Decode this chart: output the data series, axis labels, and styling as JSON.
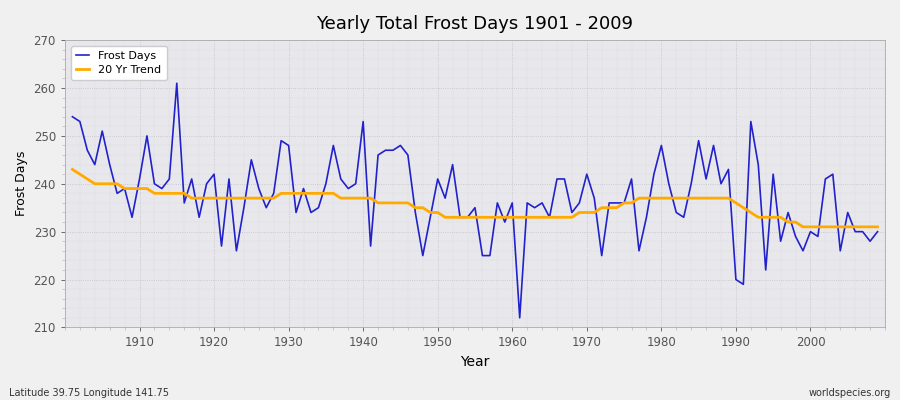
{
  "title": "Yearly Total Frost Days 1901 - 2009",
  "xlabel": "Year",
  "ylabel": "Frost Days",
  "footnote_left": "Latitude 39.75 Longitude 141.75",
  "footnote_right": "worldspecies.org",
  "legend_frost": "Frost Days",
  "legend_trend": "20 Yr Trend",
  "line_color": "#2222cc",
  "trend_color": "#ffaa00",
  "fig_bg_color": "#f0f0f0",
  "plot_bg_color": "#e8e8ec",
  "ylim": [
    210,
    270
  ],
  "xlim": [
    1901,
    2009
  ],
  "yticks": [
    210,
    220,
    230,
    240,
    250,
    260,
    270
  ],
  "xticks": [
    1910,
    1920,
    1930,
    1940,
    1950,
    1960,
    1970,
    1980,
    1990,
    2000
  ],
  "years": [
    1901,
    1902,
    1903,
    1904,
    1905,
    1906,
    1907,
    1908,
    1909,
    1910,
    1911,
    1912,
    1913,
    1914,
    1915,
    1916,
    1917,
    1918,
    1919,
    1920,
    1921,
    1922,
    1923,
    1924,
    1925,
    1926,
    1927,
    1928,
    1929,
    1930,
    1931,
    1932,
    1933,
    1934,
    1935,
    1936,
    1937,
    1938,
    1939,
    1940,
    1941,
    1942,
    1943,
    1944,
    1945,
    1946,
    1947,
    1948,
    1949,
    1950,
    1951,
    1952,
    1953,
    1954,
    1955,
    1956,
    1957,
    1958,
    1959,
    1960,
    1961,
    1962,
    1963,
    1964,
    1965,
    1966,
    1967,
    1968,
    1969,
    1970,
    1971,
    1972,
    1973,
    1974,
    1975,
    1976,
    1977,
    1978,
    1979,
    1980,
    1981,
    1982,
    1983,
    1984,
    1985,
    1986,
    1987,
    1988,
    1989,
    1990,
    1991,
    1992,
    1993,
    1994,
    1995,
    1996,
    1997,
    1998,
    1999,
    2000,
    2001,
    2002,
    2003,
    2004,
    2005,
    2006,
    2007,
    2008,
    2009
  ],
  "frost_days": [
    254,
    253,
    247,
    244,
    251,
    244,
    238,
    239,
    233,
    241,
    250,
    240,
    239,
    241,
    261,
    236,
    241,
    233,
    240,
    242,
    227,
    241,
    226,
    235,
    245,
    239,
    235,
    238,
    249,
    248,
    234,
    239,
    234,
    235,
    240,
    248,
    241,
    239,
    240,
    253,
    227,
    246,
    247,
    247,
    248,
    246,
    234,
    225,
    233,
    241,
    237,
    244,
    233,
    233,
    235,
    225,
    225,
    236,
    232,
    236,
    212,
    236,
    235,
    236,
    233,
    241,
    241,
    234,
    236,
    242,
    237,
    225,
    236,
    236,
    236,
    241,
    226,
    233,
    242,
    248,
    240,
    234,
    233,
    240,
    249,
    241,
    248,
    240,
    243,
    220,
    219,
    253,
    244,
    222,
    242,
    228,
    234,
    229,
    226,
    230,
    229,
    241,
    242,
    226,
    234,
    230,
    230,
    228,
    230
  ],
  "trend_vals": [
    243,
    242,
    241,
    240,
    240,
    240,
    240,
    239,
    239,
    239,
    239,
    238,
    238,
    238,
    238,
    238,
    237,
    237,
    237,
    237,
    237,
    237,
    237,
    237,
    237,
    237,
    237,
    237,
    238,
    238,
    238,
    238,
    238,
    238,
    238,
    238,
    237,
    237,
    237,
    237,
    237,
    236,
    236,
    236,
    236,
    236,
    235,
    235,
    234,
    234,
    233,
    233,
    233,
    233,
    233,
    233,
    233,
    233,
    233,
    233,
    233,
    233,
    233,
    233,
    233,
    233,
    233,
    233,
    234,
    234,
    234,
    235,
    235,
    235,
    236,
    236,
    237,
    237,
    237,
    237,
    237,
    237,
    237,
    237,
    237,
    237,
    237,
    237,
    237,
    236,
    235,
    234,
    233,
    233,
    233,
    233,
    232,
    232,
    231,
    231,
    231,
    231,
    231,
    231,
    231,
    231,
    231,
    231,
    231
  ]
}
